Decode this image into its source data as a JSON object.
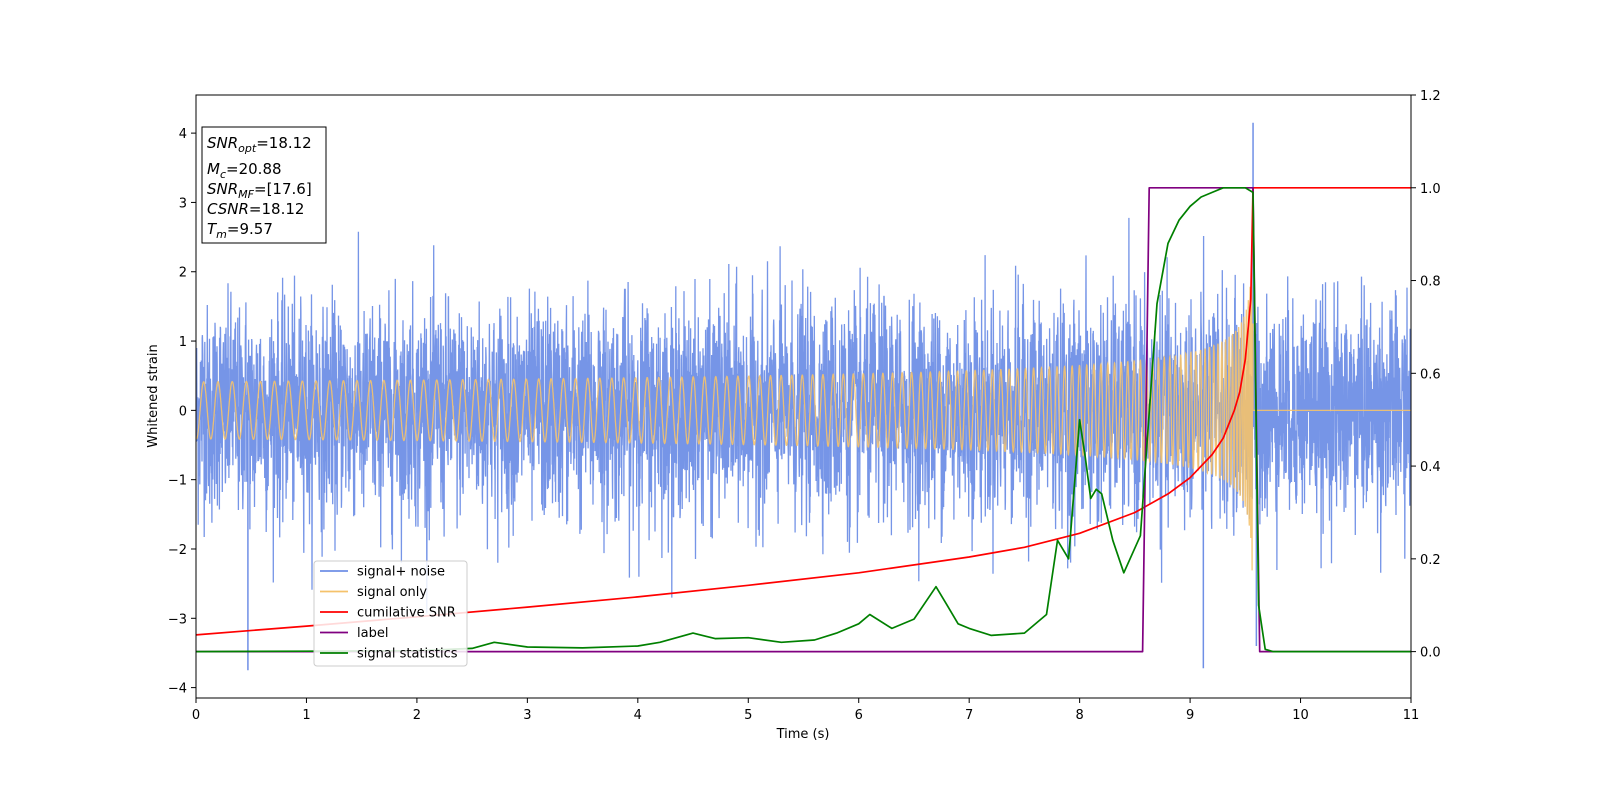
{
  "chart_data": {
    "type": "line",
    "xlabel": "Time (s)",
    "ylabel": "Whitened strain",
    "xlim": [
      0,
      11
    ],
    "ylim": [
      -4.15,
      4.55
    ],
    "y2lim": [
      -0.1,
      1.2
    ],
    "grid": false,
    "legend_placement": "lower-left",
    "x_ticks": [
      "0",
      "1",
      "2",
      "3",
      "4",
      "5",
      "6",
      "7",
      "8",
      "9",
      "10",
      "11"
    ],
    "y_ticks": [
      "−4",
      "−3",
      "−2",
      "−1",
      "0",
      "1",
      "2",
      "3",
      "4"
    ],
    "y2_ticks": [
      "0.0",
      "0.2",
      "0.4",
      "0.6",
      "0.8",
      "1.0",
      "1.2"
    ],
    "annotation": [
      {
        "base": "SNR",
        "sub": "opt",
        "value": "=18.12"
      },
      {
        "base": "M",
        "sub": "c",
        "value": "=20.88"
      },
      {
        "base": "SNR",
        "sub": "MF",
        "value": "=[17.6]"
      },
      {
        "base": "CSNR",
        "sub": "",
        "value": "=18.12"
      },
      {
        "base": "T",
        "sub": "m",
        "value": "=9.57"
      }
    ],
    "series": [
      {
        "name": "signal+ noise",
        "axis": "left",
        "color": "#6f8fe6",
        "kind": "noise",
        "approx_range": [
          -3.75,
          4.15
        ],
        "notable_peaks": [
          [
            9.57,
            4.15
          ],
          [
            0.47,
            -3.75
          ],
          [
            9.12,
            -3.72
          ],
          [
            9.6,
            -3.4
          ]
        ]
      },
      {
        "name": "signal only",
        "axis": "left",
        "color": "#f5c26b",
        "kind": "chirp",
        "merger_time": 9.57,
        "peak_amplitude": 2.6
      },
      {
        "name": "cumilative SNR",
        "axis": "right",
        "color": "#ff0000",
        "x": [
          0,
          1,
          2,
          3,
          4,
          5,
          6,
          7,
          7.5,
          8,
          8.5,
          8.8,
          9.0,
          9.2,
          9.3,
          9.4,
          9.45,
          9.5,
          9.55,
          9.57,
          11
        ],
        "y": [
          0.036,
          0.055,
          0.075,
          0.096,
          0.118,
          0.143,
          0.17,
          0.204,
          0.225,
          0.255,
          0.3,
          0.34,
          0.375,
          0.425,
          0.46,
          0.52,
          0.56,
          0.63,
          0.76,
          1.0,
          1.0
        ]
      },
      {
        "name": "label",
        "axis": "right",
        "color": "#800080",
        "x": [
          0,
          8.57,
          8.63,
          9.57,
          9.63,
          11
        ],
        "y": [
          0,
          0,
          1,
          1,
          0,
          0
        ]
      },
      {
        "name": "signal statistics",
        "axis": "right",
        "color": "#008000",
        "x": [
          0,
          1,
          2,
          2.5,
          2.7,
          3,
          3.5,
          4,
          4.2,
          4.5,
          4.7,
          5,
          5.3,
          5.6,
          5.8,
          6.0,
          6.1,
          6.3,
          6.5,
          6.7,
          6.8,
          6.9,
          7.0,
          7.2,
          7.5,
          7.7,
          7.8,
          7.9,
          8.0,
          8.05,
          8.1,
          8.15,
          8.2,
          8.3,
          8.4,
          8.55,
          8.7,
          8.8,
          8.9,
          9.0,
          9.1,
          9.2,
          9.3,
          9.4,
          9.5,
          9.57,
          9.62,
          9.68,
          9.75,
          11
        ],
        "y": [
          0.0,
          0.001,
          0.002,
          0.007,
          0.02,
          0.01,
          0.008,
          0.012,
          0.02,
          0.04,
          0.028,
          0.03,
          0.02,
          0.025,
          0.04,
          0.06,
          0.08,
          0.05,
          0.07,
          0.14,
          0.1,
          0.06,
          0.05,
          0.035,
          0.04,
          0.08,
          0.24,
          0.2,
          0.5,
          0.42,
          0.33,
          0.35,
          0.34,
          0.24,
          0.17,
          0.25,
          0.75,
          0.88,
          0.93,
          0.96,
          0.98,
          0.99,
          1.0,
          1.0,
          1.0,
          0.99,
          0.1,
          0.005,
          0.0,
          0.0
        ]
      }
    ]
  }
}
